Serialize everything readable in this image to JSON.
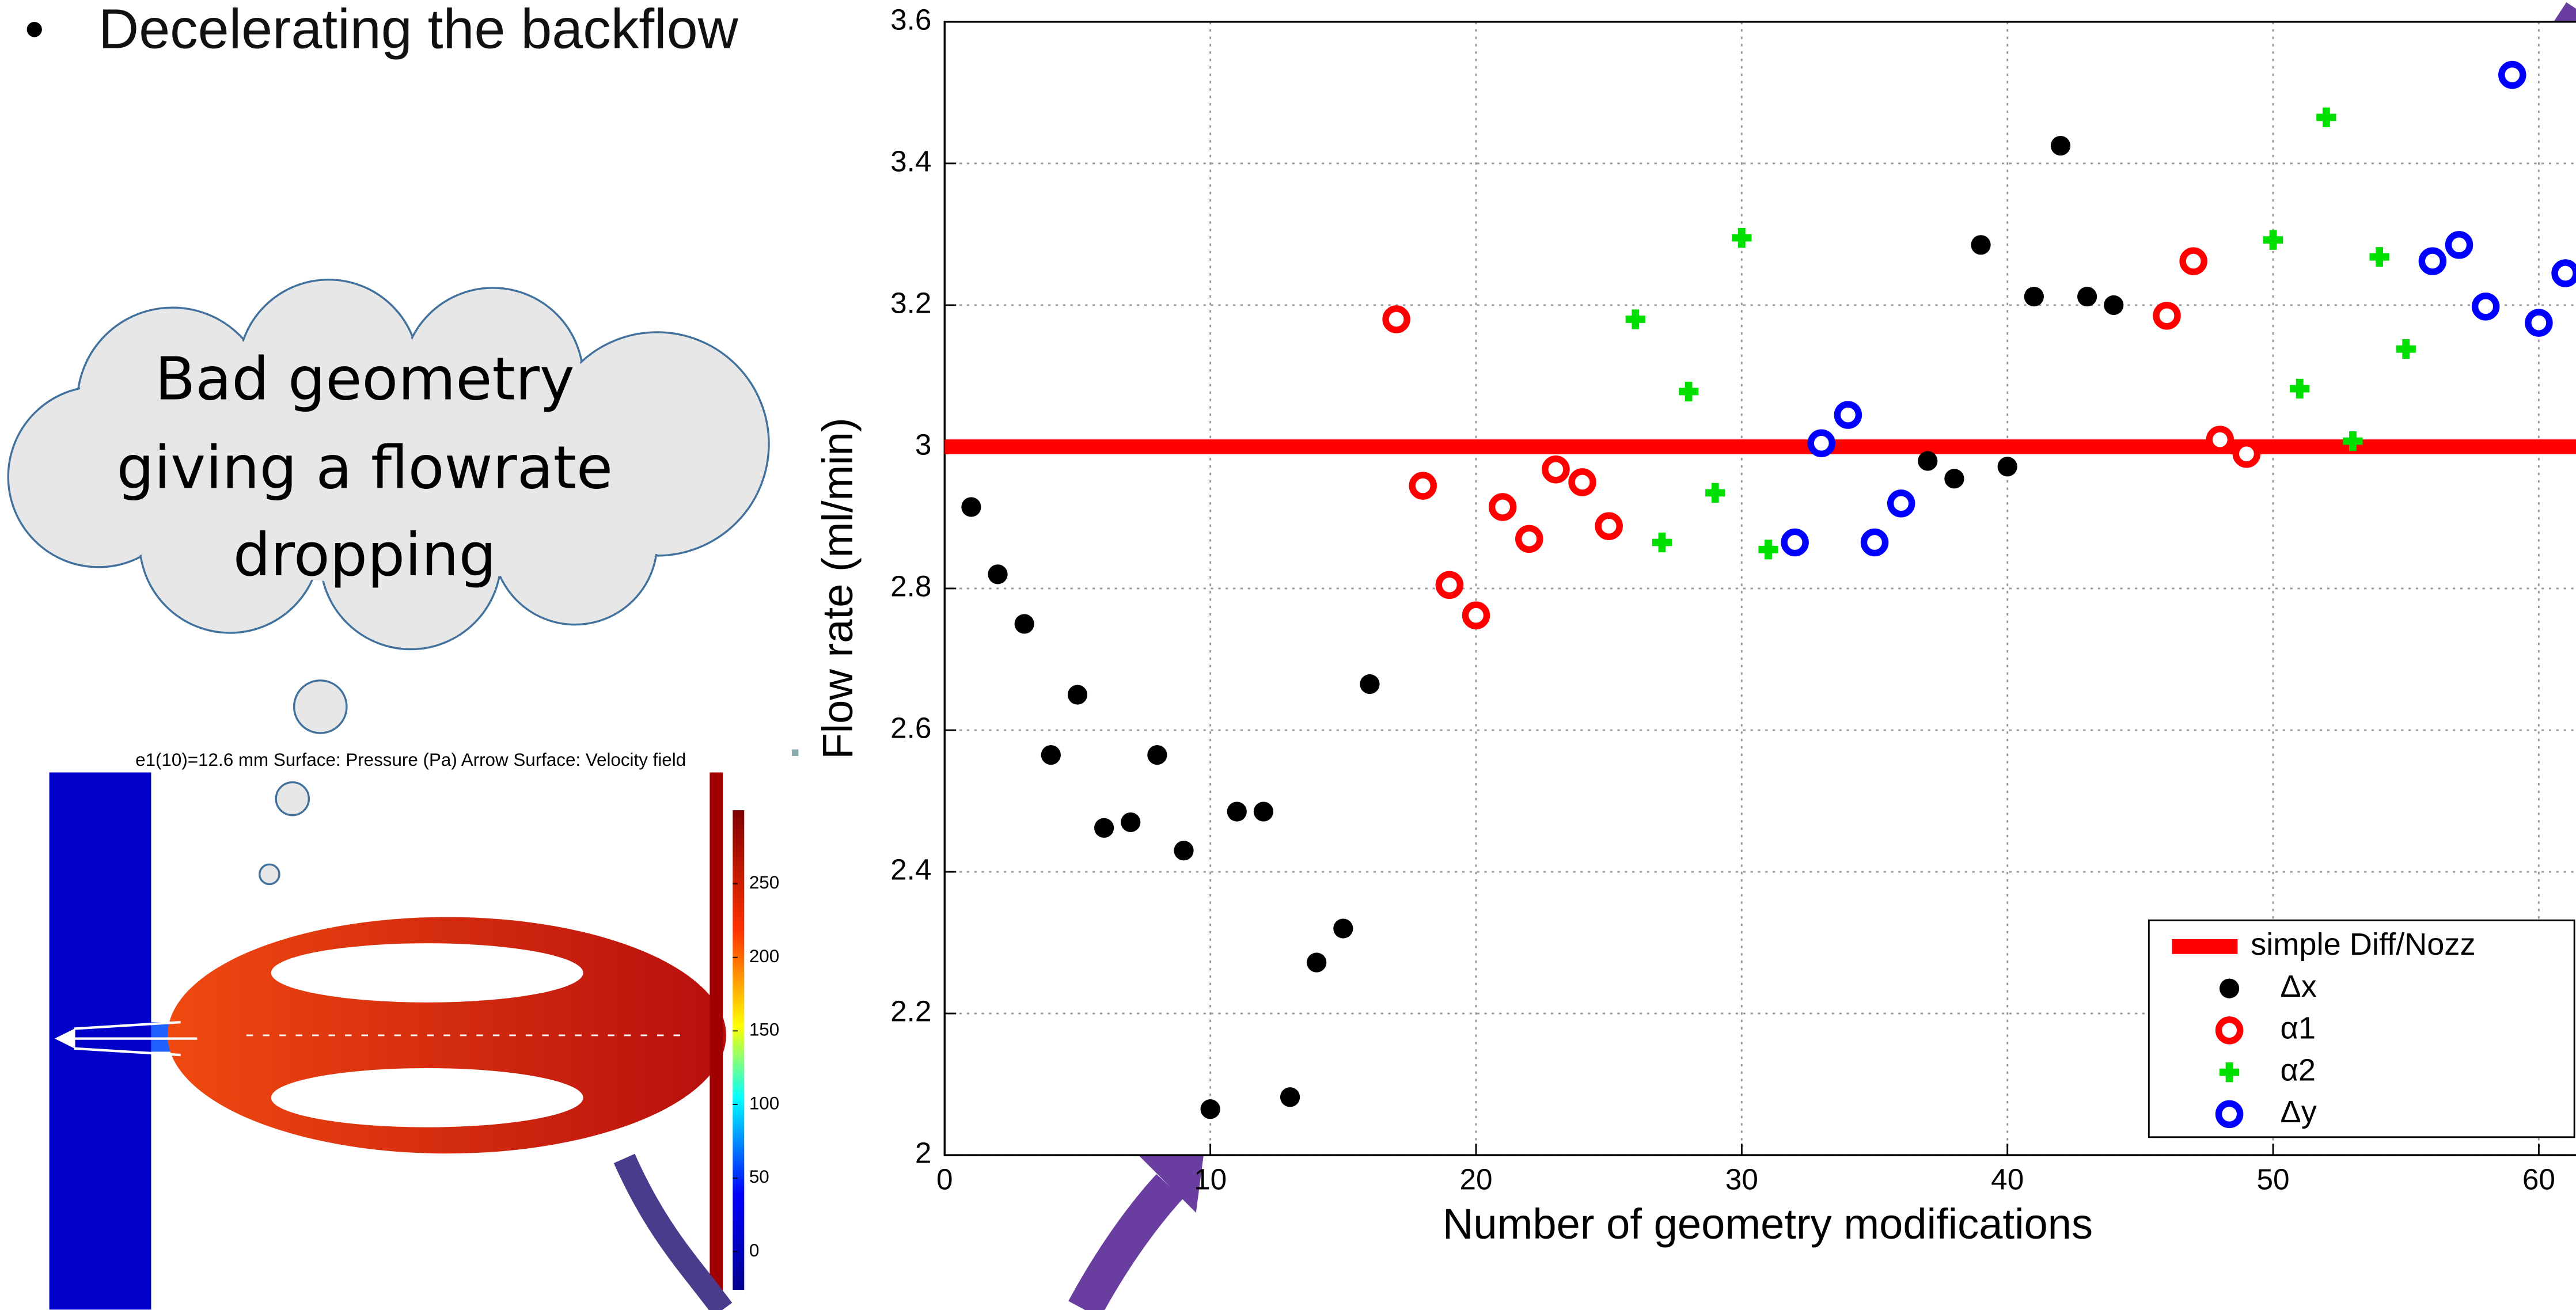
{
  "slide": {
    "bullet": "Decelerating the backflow",
    "cloud_text": [
      "Bad geometry",
      "giving a flowrate",
      "dropping"
    ],
    "simulation": {
      "caption": "e1(10)=12.6 mm   Surface: Pressure (Pa)  Arrow Surface: Velocity field",
      "clim": [
        -26,
        300
      ],
      "colorbar_ticks": [
        0,
        50,
        100,
        150,
        200,
        250
      ]
    }
  },
  "chart_data": {
    "type": "scatter",
    "xlabel": "Number of geometry modifications",
    "ylabel": "Flow rate (ml/min)",
    "xlim": [
      0,
      61.4
    ],
    "ylim": [
      2,
      3.6
    ],
    "xticks": [
      0,
      10,
      20,
      30,
      40,
      50,
      60
    ],
    "yticks": [
      2,
      2.2,
      2.4,
      2.6,
      2.8,
      3,
      3.2,
      3.4,
      3.6
    ],
    "grid": true,
    "legend": "lower right",
    "reference_line": {
      "name": "simple Diff/Nozz",
      "value": 3,
      "color": "#ff0000"
    },
    "series": [
      {
        "name": "Δx",
        "color": "#000000",
        "marker": "dot",
        "x": [
          1,
          2,
          3,
          4,
          5,
          6,
          7,
          8,
          9,
          10,
          11,
          12,
          13,
          14,
          15,
          16,
          37,
          38,
          39,
          40,
          41,
          42,
          43,
          44
        ],
        "values": [
          2.915,
          2.82,
          2.75,
          2.565,
          2.65,
          2.462,
          2.47,
          2.565,
          2.43,
          2.065,
          2.485,
          2.485,
          2.082,
          2.272,
          2.32,
          2.665,
          2.98,
          2.955,
          3.285,
          2.972,
          3.212,
          3.425,
          3.212,
          3.2
        ]
      },
      {
        "name": "α1",
        "color": "#ff0000",
        "marker": "ring",
        "x": [
          17,
          18,
          19,
          20,
          21,
          22,
          23,
          24,
          25,
          46,
          47,
          48,
          49
        ],
        "values": [
          3.18,
          2.945,
          2.805,
          2.762,
          2.915,
          2.87,
          2.968,
          2.95,
          2.888,
          3.185,
          3.262,
          3.01,
          2.99
        ]
      },
      {
        "name": "α2",
        "color": "#00e000",
        "marker": "plus",
        "x": [
          26,
          27,
          28,
          29,
          30,
          31,
          50,
          51,
          52,
          53,
          54,
          55
        ],
        "values": [
          3.18,
          2.865,
          3.078,
          2.935,
          3.295,
          2.855,
          3.292,
          3.082,
          3.465,
          3.008,
          3.268,
          3.138
        ]
      },
      {
        "name": "Δy",
        "color": "#0000ff",
        "marker": "ring",
        "x": [
          32,
          33,
          34,
          35,
          36,
          56,
          57,
          58,
          59,
          60,
          61
        ],
        "values": [
          2.865,
          3.005,
          3.045,
          2.865,
          2.92,
          3.262,
          3.285,
          3.198,
          3.525,
          3.175,
          3.245
        ]
      }
    ]
  }
}
